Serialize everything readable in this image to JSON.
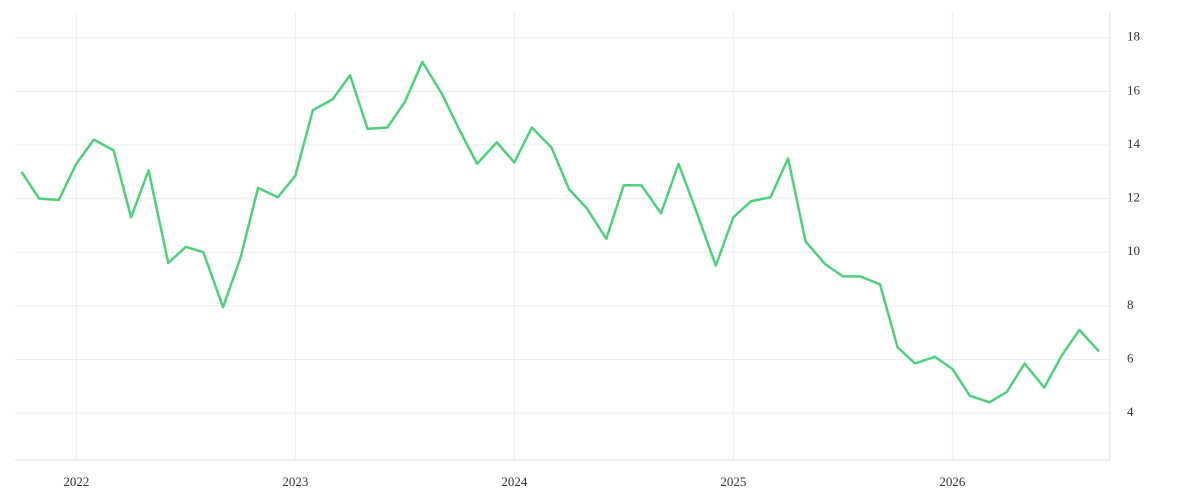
{
  "chart_data": {
    "type": "line",
    "x": [
      2021.75,
      2021.83,
      2021.92,
      2022.0,
      2022.08,
      2022.17,
      2022.25,
      2022.33,
      2022.42,
      2022.5,
      2022.58,
      2022.67,
      2022.75,
      2022.83,
      2022.92,
      2023.0,
      2023.08,
      2023.17,
      2023.25,
      2023.33,
      2023.42,
      2023.5,
      2023.58,
      2023.67,
      2023.75,
      2023.83,
      2023.92,
      2024.0,
      2024.08,
      2024.17,
      2024.25,
      2024.33,
      2024.42,
      2024.5,
      2024.58,
      2024.67,
      2024.75,
      2024.83,
      2024.92,
      2025.0,
      2025.08,
      2025.17,
      2025.25,
      2025.33,
      2025.42,
      2025.5,
      2025.58,
      2025.67,
      2025.75,
      2025.83,
      2025.92,
      2026.0,
      2026.08,
      2026.17,
      2026.25,
      2026.33,
      2026.42,
      2026.5,
      2026.58,
      2026.67
    ],
    "values": [
      13.0,
      12.0,
      11.95,
      13.3,
      14.2,
      13.8,
      11.3,
      13.05,
      9.6,
      10.2,
      10.0,
      7.95,
      9.8,
      12.4,
      12.05,
      12.85,
      15.3,
      15.7,
      16.6,
      14.6,
      14.65,
      15.6,
      17.1,
      15.9,
      14.55,
      13.3,
      14.1,
      13.35,
      14.65,
      13.9,
      12.35,
      11.65,
      10.5,
      12.5,
      12.5,
      11.45,
      13.3,
      11.55,
      9.5,
      11.3,
      11.9,
      12.05,
      13.5,
      10.4,
      9.55,
      9.1,
      9.1,
      8.8,
      6.45,
      5.85,
      6.1,
      5.65,
      4.65,
      4.4,
      4.8,
      5.85,
      4.95,
      6.15,
      7.1,
      6.3
    ],
    "color": "#4fd17c",
    "xlim": [
      2021.72,
      2026.72
    ],
    "xticks": [
      2022,
      2023,
      2024,
      2025,
      2026
    ],
    "ylim": [
      2.25,
      18.96
    ],
    "yticks": [
      4,
      6,
      8,
      10,
      12,
      14,
      16,
      18
    ],
    "grid": true
  }
}
